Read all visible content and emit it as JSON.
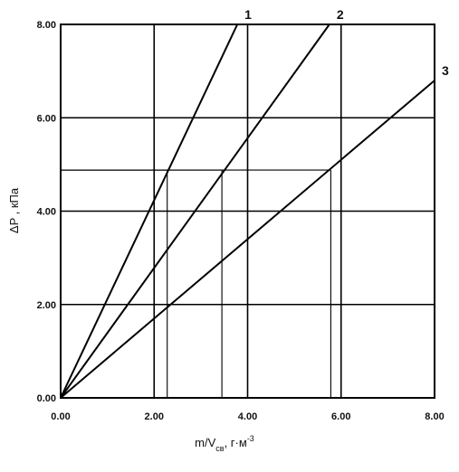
{
  "chart_data": {
    "type": "line",
    "xlabel_main": "m/V",
    "xlabel_sub": "св",
    "xlabel_unit": ", г·м",
    "xlabel_sup": "-3",
    "ylabel": "ΔP , кПа",
    "xlim": [
      0,
      8
    ],
    "ylim": [
      0,
      8
    ],
    "x_ticks": [
      "0.00",
      "2.00",
      "4.00",
      "6.00",
      "8.00"
    ],
    "y_ticks": [
      "0.00",
      "2.00",
      "4.00",
      "6.00",
      "8.00"
    ],
    "x_tick_values": [
      0,
      2,
      4,
      6,
      8
    ],
    "y_tick_values": [
      0,
      2,
      4,
      6,
      8
    ],
    "grid": true,
    "series": [
      {
        "name": "1",
        "x": [
          0,
          3.78
        ],
        "y": [
          0,
          8.0
        ]
      },
      {
        "name": "2",
        "x": [
          0,
          5.75
        ],
        "y": [
          0,
          8.0
        ]
      },
      {
        "name": "3",
        "x": [
          0,
          8.0
        ],
        "y": [
          0,
          6.8
        ]
      }
    ],
    "guides": [
      {
        "x": 2.28,
        "y": 4.88
      },
      {
        "x": 3.45,
        "y": 4.88
      },
      {
        "x": 5.78,
        "y": 4.88
      }
    ]
  }
}
